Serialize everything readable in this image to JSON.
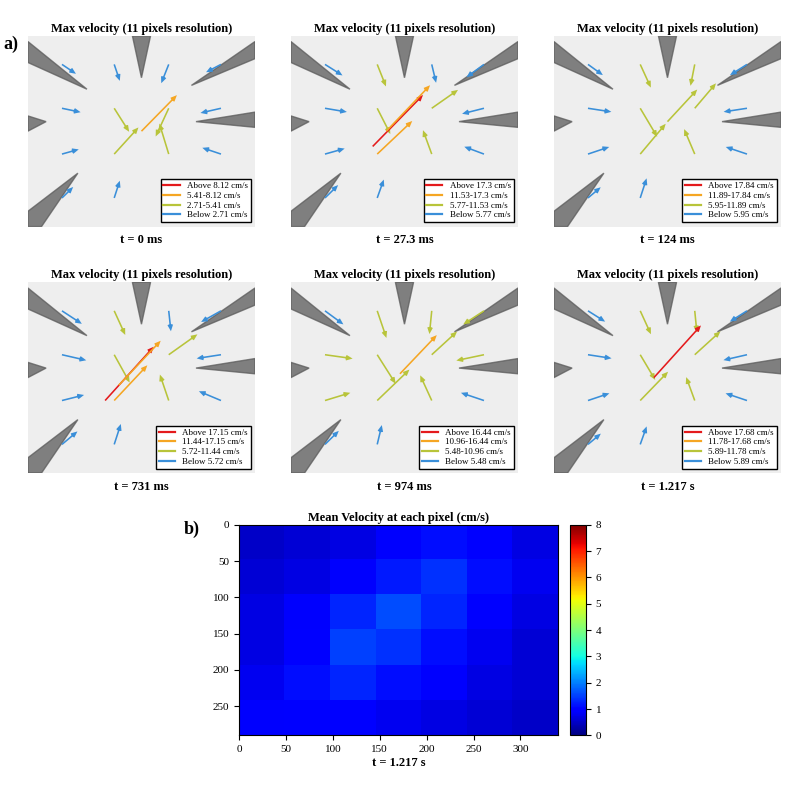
{
  "panel_labels": [
    "a)",
    "b)"
  ],
  "chart_data": [
    {
      "type": "quiver",
      "title": "Max velocity (11 pixels resolution)",
      "time_label": "t = 0 ms",
      "legend": "lower right",
      "tick_labels": false,
      "xlim": [
        0,
        1
      ],
      "ylim": [
        0,
        1
      ],
      "legend_labels": [
        "Above 8.12 cm/s",
        "5.41-8.12 cm/s",
        "2.71-5.41 cm/s",
        "Below 2.71 cm/s"
      ],
      "colors": [
        "#e41a1c",
        "#f5a623",
        "#b8c43a",
        "#3a8fd9"
      ],
      "thresholds": [
        2.71,
        5.41,
        8.12
      ],
      "vectors": [
        [
          0.15,
          0.85,
          1.5,
          -1.2
        ],
        [
          0.38,
          0.85,
          0.6,
          -2.1
        ],
        [
          0.62,
          0.85,
          -0.8,
          -2.4
        ],
        [
          0.85,
          0.85,
          -1.6,
          -1.0
        ],
        [
          0.15,
          0.62,
          2.0,
          -0.5
        ],
        [
          0.38,
          0.62,
          1.6,
          -3.0
        ],
        [
          0.62,
          0.62,
          -1.4,
          -3.6
        ],
        [
          0.85,
          0.62,
          -2.2,
          -0.6
        ],
        [
          0.15,
          0.38,
          1.8,
          0.6
        ],
        [
          0.38,
          0.38,
          2.6,
          3.4
        ],
        [
          0.62,
          0.38,
          -1.0,
          3.9
        ],
        [
          0.85,
          0.38,
          -2.0,
          0.8
        ],
        [
          0.15,
          0.15,
          1.2,
          1.4
        ],
        [
          0.38,
          0.15,
          0.6,
          2.2
        ],
        [
          0.5,
          0.5,
          3.8,
          4.6
        ]
      ]
    },
    {
      "type": "quiver",
      "title": "Max velocity (11 pixels resolution)",
      "time_label": "t = 27.3 ms",
      "legend": "lower right",
      "tick_labels": false,
      "xlim": [
        0,
        1
      ],
      "ylim": [
        0,
        1
      ],
      "legend_labels": [
        "Above 17.3 cm/s",
        "11.53-17.3 cm/s",
        "5.77-11.53 cm/s",
        "Below 5.77 cm/s"
      ],
      "colors": [
        "#e41a1c",
        "#f5a623",
        "#b8c43a",
        "#3a8fd9"
      ],
      "thresholds": [
        5.77,
        11.53,
        17.3
      ],
      "vectors": [
        [
          0.15,
          0.85,
          4.0,
          -3.0
        ],
        [
          0.38,
          0.85,
          2.0,
          -6.0
        ],
        [
          0.62,
          0.85,
          1.0,
          -5.0
        ],
        [
          0.85,
          0.85,
          -4.0,
          -3.5
        ],
        [
          0.15,
          0.62,
          5.0,
          -1.0
        ],
        [
          0.38,
          0.62,
          3.0,
          -7.0
        ],
        [
          0.62,
          0.62,
          6.0,
          5.0
        ],
        [
          0.85,
          0.62,
          -5.0,
          -1.5
        ],
        [
          0.15,
          0.38,
          4.5,
          1.5
        ],
        [
          0.38,
          0.38,
          8.0,
          9.0
        ],
        [
          0.62,
          0.38,
          -2.0,
          6.5
        ],
        [
          0.85,
          0.38,
          -4.5,
          2.0
        ],
        [
          0.15,
          0.15,
          3.0,
          3.5
        ],
        [
          0.38,
          0.15,
          1.5,
          5.0
        ],
        [
          0.36,
          0.42,
          11.5,
          14.0
        ],
        [
          0.42,
          0.5,
          10.0,
          12.5
        ]
      ]
    },
    {
      "type": "quiver",
      "title": "Max velocity (11 pixels resolution)",
      "time_label": "t = 124 ms",
      "legend": "lower right",
      "tick_labels": false,
      "xlim": [
        0,
        1
      ],
      "ylim": [
        0,
        1
      ],
      "legend_labels": [
        "Above 17.84 cm/s",
        "11.89-17.84 cm/s",
        "5.95-11.89 cm/s",
        "Below 5.95 cm/s"
      ],
      "colors": [
        "#e41a1c",
        "#f5a623",
        "#b8c43a",
        "#3a8fd9"
      ],
      "thresholds": [
        5.95,
        11.89,
        17.84
      ],
      "vectors": [
        [
          0.15,
          0.85,
          3.5,
          -3.0
        ],
        [
          0.38,
          0.85,
          2.5,
          -6.5
        ],
        [
          0.62,
          0.85,
          -1.0,
          -6.0
        ],
        [
          0.85,
          0.85,
          -4.0,
          -3.0
        ],
        [
          0.15,
          0.62,
          5.5,
          -1.0
        ],
        [
          0.38,
          0.62,
          4.0,
          -8.0
        ],
        [
          0.62,
          0.62,
          5.0,
          7.0
        ],
        [
          0.85,
          0.62,
          -5.5,
          -1.0
        ],
        [
          0.15,
          0.38,
          5.0,
          2.0
        ],
        [
          0.38,
          0.38,
          6.0,
          8.5
        ],
        [
          0.62,
          0.38,
          -2.5,
          7.0
        ],
        [
          0.85,
          0.38,
          -5.0,
          2.0
        ],
        [
          0.15,
          0.15,
          3.0,
          3.0
        ],
        [
          0.38,
          0.15,
          1.5,
          5.5
        ],
        [
          0.5,
          0.55,
          7.0,
          9.0
        ]
      ]
    },
    {
      "type": "quiver",
      "title": "Max velocity (11 pixels resolution)",
      "time_label": "t = 731 ms",
      "legend": "lower right",
      "tick_labels": false,
      "xlim": [
        0,
        1
      ],
      "ylim": [
        0,
        1
      ],
      "legend_labels": [
        "Above 17.15 cm/s",
        "11.44-17.15 cm/s",
        "5.72-11.44 cm/s",
        "Below 5.72 cm/s"
      ],
      "colors": [
        "#e41a1c",
        "#f5a623",
        "#b8c43a",
        "#3a8fd9"
      ],
      "thresholds": [
        5.72,
        11.44,
        17.15
      ],
      "vectors": [
        [
          0.15,
          0.85,
          4.5,
          -3.5
        ],
        [
          0.38,
          0.85,
          2.5,
          -6.5
        ],
        [
          0.62,
          0.85,
          0.5,
          -5.5
        ],
        [
          0.85,
          0.85,
          -4.5,
          -3.0
        ],
        [
          0.15,
          0.62,
          5.5,
          -1.5
        ],
        [
          0.38,
          0.62,
          3.5,
          -7.5
        ],
        [
          0.62,
          0.62,
          6.5,
          5.5
        ],
        [
          0.85,
          0.62,
          -5.5,
          -1.0
        ],
        [
          0.15,
          0.38,
          5.0,
          1.5
        ],
        [
          0.38,
          0.38,
          7.5,
          9.5
        ],
        [
          0.62,
          0.38,
          -2.0,
          7.0
        ],
        [
          0.85,
          0.38,
          -5.0,
          2.5
        ],
        [
          0.15,
          0.15,
          3.5,
          3.5
        ],
        [
          0.38,
          0.15,
          1.5,
          5.5
        ],
        [
          0.34,
          0.38,
          11.0,
          14.5
        ],
        [
          0.4,
          0.46,
          9.5,
          12.0
        ]
      ]
    },
    {
      "type": "quiver",
      "title": "Max velocity (11 pixels resolution)",
      "time_label": "t = 974 ms",
      "legend": "lower right",
      "tick_labels": false,
      "xlim": [
        0,
        1
      ],
      "ylim": [
        0,
        1
      ],
      "legend_labels": [
        "Above 16.44 cm/s",
        "10.96-16.44 cm/s",
        "5.48-10.96 cm/s",
        "Below 5.48 cm/s"
      ],
      "colors": [
        "#e41a1c",
        "#f5a623",
        "#b8c43a",
        "#3a8fd9"
      ],
      "thresholds": [
        5.48,
        10.96,
        16.44
      ],
      "vectors": [
        [
          0.15,
          0.85,
          4.0,
          -3.5
        ],
        [
          0.38,
          0.85,
          2.0,
          -7.0
        ],
        [
          0.62,
          0.85,
          -0.5,
          -6.0
        ],
        [
          0.85,
          0.85,
          -4.5,
          -3.5
        ],
        [
          0.15,
          0.62,
          6.0,
          -1.0
        ],
        [
          0.38,
          0.62,
          4.0,
          -7.5
        ],
        [
          0.62,
          0.62,
          5.5,
          6.0
        ],
        [
          0.85,
          0.62,
          -6.0,
          -1.5
        ],
        [
          0.15,
          0.38,
          5.5,
          2.0
        ],
        [
          0.38,
          0.38,
          7.0,
          8.0
        ],
        [
          0.62,
          0.38,
          -2.5,
          6.5
        ],
        [
          0.85,
          0.38,
          -5.0,
          2.0
        ],
        [
          0.15,
          0.15,
          3.0,
          3.5
        ],
        [
          0.38,
          0.15,
          1.0,
          5.0
        ],
        [
          0.48,
          0.52,
          8.0,
          10.0
        ]
      ]
    },
    {
      "type": "quiver",
      "title": "Max velocity (11 pixels resolution)",
      "time_label": "t = 1.217 s",
      "legend": "lower right",
      "tick_labels": false,
      "xlim": [
        0,
        1
      ],
      "ylim": [
        0,
        1
      ],
      "legend_labels": [
        "Above 17.68 cm/s",
        "11.78-17.68 cm/s",
        "5.89-11.78 cm/s",
        "Below 5.89 cm/s"
      ],
      "colors": [
        "#e41a1c",
        "#f5a623",
        "#b8c43a",
        "#3a8fd9"
      ],
      "thresholds": [
        5.89,
        11.78,
        17.68
      ],
      "vectors": [
        [
          0.15,
          0.85,
          4.0,
          -3.0
        ],
        [
          0.38,
          0.85,
          2.5,
          -6.5
        ],
        [
          0.62,
          0.85,
          0.5,
          -6.0
        ],
        [
          0.85,
          0.85,
          -4.0,
          -3.0
        ],
        [
          0.15,
          0.62,
          5.5,
          -1.0
        ],
        [
          0.38,
          0.62,
          3.5,
          -7.0
        ],
        [
          0.62,
          0.62,
          6.0,
          6.5
        ],
        [
          0.85,
          0.62,
          -5.5,
          -1.5
        ],
        [
          0.15,
          0.38,
          5.0,
          2.0
        ],
        [
          0.38,
          0.38,
          6.5,
          8.0
        ],
        [
          0.62,
          0.38,
          -2.0,
          6.5
        ],
        [
          0.85,
          0.38,
          -5.0,
          2.0
        ],
        [
          0.15,
          0.15,
          3.0,
          3.0
        ],
        [
          0.38,
          0.15,
          1.5,
          5.0
        ],
        [
          0.44,
          0.5,
          11.0,
          14.5
        ]
      ]
    },
    {
      "type": "heatmap",
      "title": "Mean Velocity at each pixel (cm/s)",
      "xlabel": "t = 1.217 s",
      "xlim": [
        0,
        340
      ],
      "ylim": [
        290,
        0
      ],
      "xticks": [
        0,
        50,
        100,
        150,
        200,
        250,
        300
      ],
      "yticks": [
        0,
        50,
        100,
        150,
        200,
        250
      ],
      "cells": [
        [
          0.5,
          0.6,
          0.7,
          0.9,
          1.1,
          1.0,
          0.7
        ],
        [
          0.6,
          0.7,
          0.9,
          1.2,
          1.4,
          1.1,
          0.8
        ],
        [
          0.7,
          0.9,
          1.3,
          1.6,
          1.3,
          1.0,
          0.7
        ],
        [
          0.7,
          1.0,
          1.5,
          1.4,
          1.1,
          0.8,
          0.6
        ],
        [
          0.8,
          1.1,
          1.3,
          1.1,
          0.9,
          0.7,
          0.6
        ],
        [
          0.9,
          1.0,
          1.0,
          0.8,
          0.7,
          0.6,
          0.5
        ]
      ],
      "colorbar_range": [
        0,
        8
      ],
      "colorbar_ticks": [
        0,
        1,
        2,
        3,
        4,
        5,
        6,
        7,
        8
      ]
    }
  ]
}
